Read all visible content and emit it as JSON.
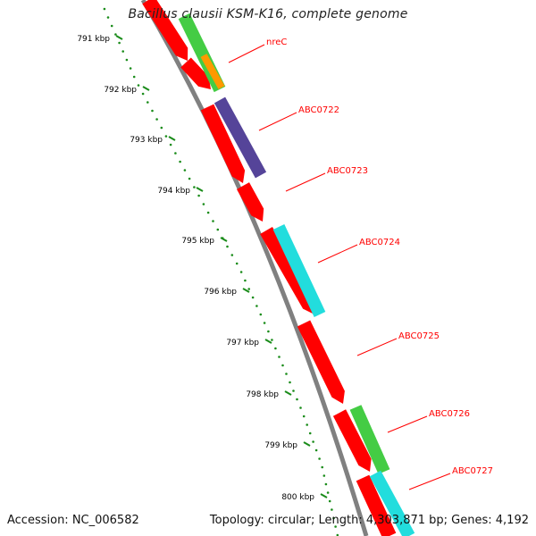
{
  "title": "Bacillus clausii KSM-K16, complete genome",
  "accession": "Accession: NC_006582",
  "summary": "Topology: circular; Length: 4,303,871 bp; Genes: 4,192",
  "colors": {
    "ruler": "#1a8c1a",
    "backbone": "#808080",
    "label": "#ff0000",
    "gene_red": "#ff0000",
    "gene_green": "#44cc44",
    "gene_orange": "#ff9900",
    "gene_purple": "#554499",
    "gene_cyan": "#22dddd"
  },
  "ruler_ticks": [
    "791 kbp",
    "792 kbp",
    "793 kbp",
    "794 kbp",
    "795 kbp",
    "796 kbp",
    "797 kbp",
    "798 kbp",
    "799 kbp",
    "800 kbp"
  ],
  "gene_labels": [
    "nreC",
    "ABC0722",
    "ABC0723",
    "ABC0724",
    "ABC0725",
    "ABC0726",
    "ABC0727"
  ],
  "genes": [
    {
      "track": "inner",
      "color": "gene_red"
    },
    {
      "track": "inner",
      "color": "gene_red"
    },
    {
      "track": "inner",
      "color": "gene_red"
    },
    {
      "track": "inner",
      "color": "gene_red"
    },
    {
      "track": "inner",
      "color": "gene_red"
    },
    {
      "track": "inner",
      "color": "gene_red"
    },
    {
      "track": "inner",
      "color": "gene_red"
    },
    {
      "track": "inner",
      "color": "gene_red"
    },
    {
      "track": "inner",
      "color": "gene_red"
    },
    {
      "track": "inner",
      "color": "gene_red"
    },
    {
      "track": "outer",
      "color": "gene_green"
    },
    {
      "track": "outer",
      "color": "gene_orange"
    },
    {
      "track": "outer",
      "color": "gene_purple"
    },
    {
      "track": "outer",
      "color": "gene_cyan"
    },
    {
      "track": "outer",
      "color": "gene_green"
    },
    {
      "track": "outer",
      "color": "gene_cyan"
    }
  ]
}
